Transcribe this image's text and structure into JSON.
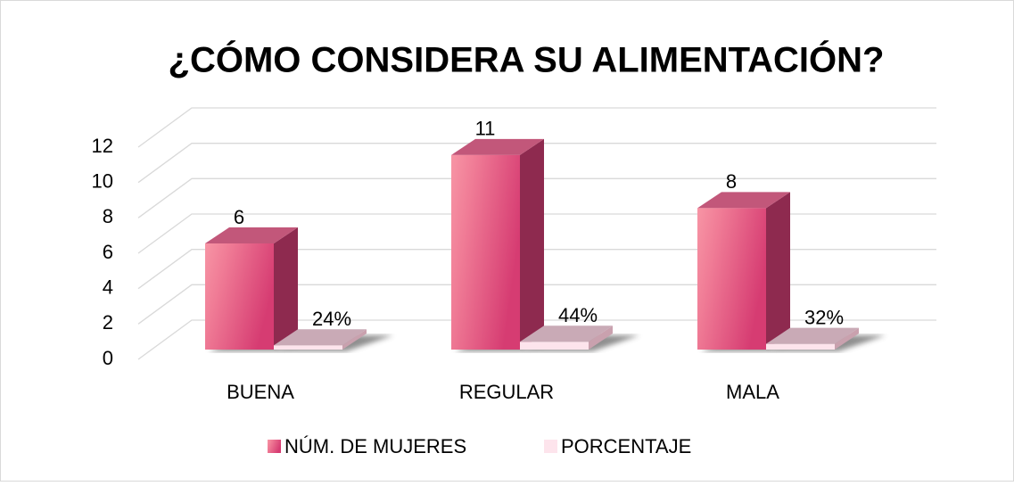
{
  "chart_data": {
    "type": "bar3d",
    "title": "¿CÓMO CONSIDERA SU ALIMENTACIÓN?",
    "categories": [
      "BUENA",
      "REGULAR",
      "MALA"
    ],
    "series": [
      {
        "name": "NÚM. DE MUJERES",
        "color": "#e2457a",
        "values": [
          6,
          11,
          8
        ]
      },
      {
        "name": "PORCENTAJE",
        "color": "#fde4ec",
        "values": [
          0.24,
          0.44,
          0.32
        ],
        "value_labels": [
          "24%",
          "44%",
          "32%"
        ]
      }
    ],
    "ylim": [
      0,
      12
    ],
    "yticks": [
      0,
      2,
      4,
      6,
      8,
      10,
      12
    ],
    "grid": true,
    "legend": "bottom"
  }
}
